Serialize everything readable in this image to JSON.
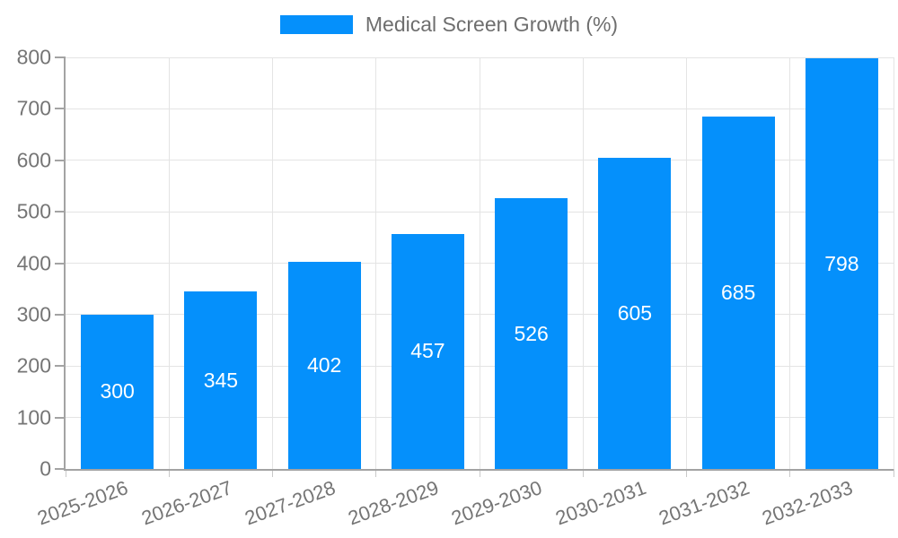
{
  "chart_data": {
    "type": "bar",
    "legend_label": "Medical Screen Growth (%)",
    "categories": [
      "2025-2026",
      "2026-2027",
      "2027-2028",
      "2028-2029",
      "2029-2030",
      "2030-2031",
      "2031-2032",
      "2032-2033"
    ],
    "values": [
      300,
      345,
      402,
      457,
      526,
      605,
      685,
      798
    ],
    "title": "",
    "xlabel": "",
    "ylabel": "",
    "ylim": [
      0,
      800
    ],
    "ytick_step": 100,
    "yticks": [
      0,
      100,
      200,
      300,
      400,
      500,
      600,
      700,
      800
    ],
    "grid": true,
    "legend_position": "top",
    "x_label_rotation_deg": -20,
    "colors": {
      "bar": "#0590fb",
      "value_text": "#ffffff",
      "axis": "#a3a3a3",
      "grid": "#e4e4e4",
      "boundary_tick": "#c9c9c9",
      "tick_text": "#757575",
      "legend_text": "#6e6e6e"
    }
  }
}
